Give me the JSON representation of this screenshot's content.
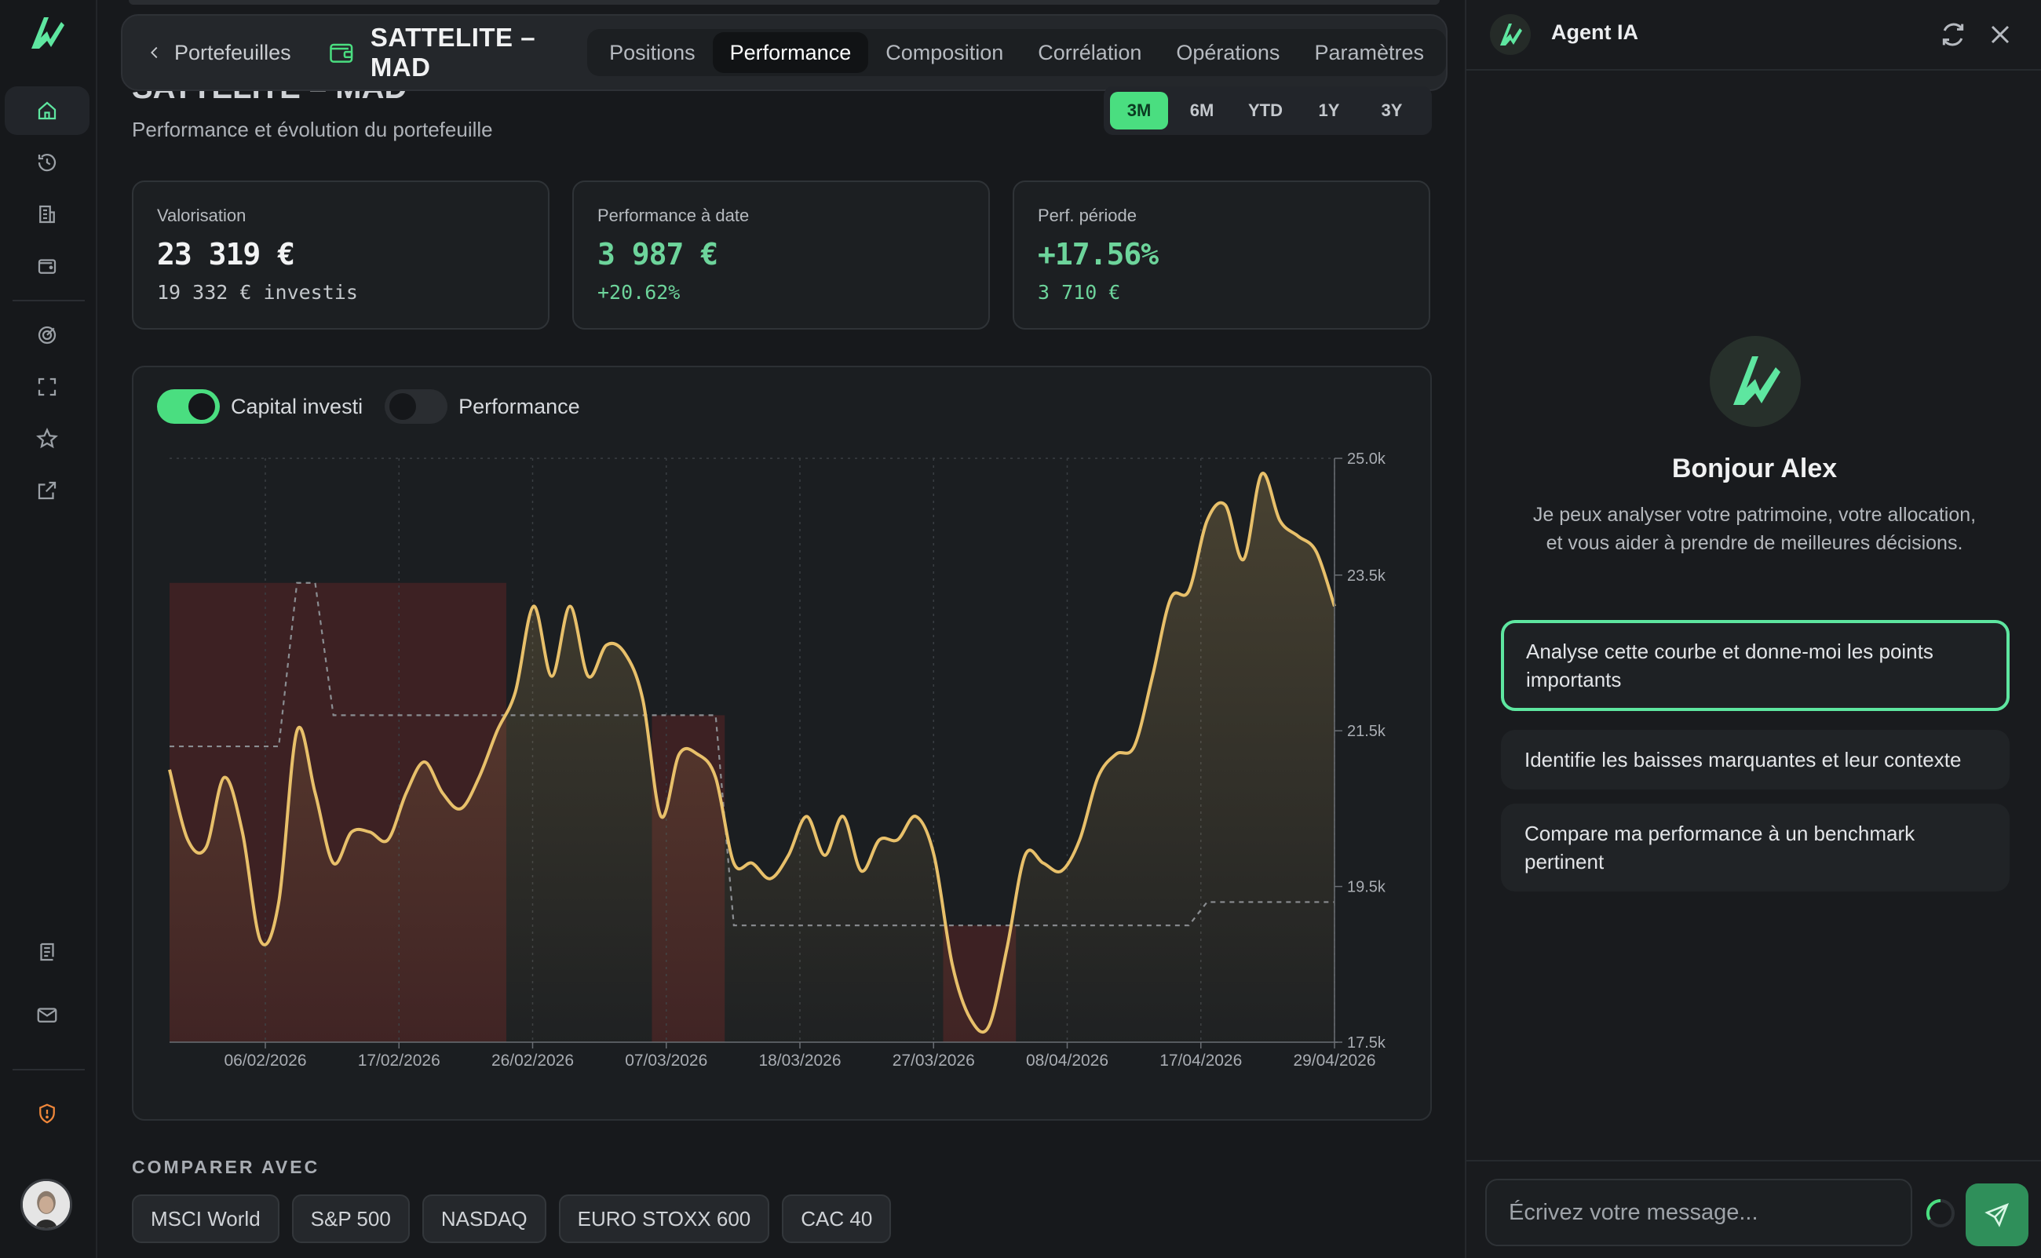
{
  "app": {
    "accent": "#4ade80",
    "brand_green": "#5ee6a0"
  },
  "sidebar": {
    "items": [
      {
        "icon": "home-icon",
        "active": true
      },
      {
        "icon": "history-icon"
      },
      {
        "icon": "building-icon"
      },
      {
        "icon": "wallet-icon"
      },
      {
        "icon": "target-icon"
      },
      {
        "icon": "scan-icon"
      },
      {
        "icon": "star-icon"
      },
      {
        "icon": "external-link-icon"
      },
      {
        "icon": "ledger-icon"
      },
      {
        "icon": "mail-icon"
      },
      {
        "icon": "shield-alert-icon"
      }
    ]
  },
  "header": {
    "back_label": "Portefeuilles",
    "portfolio_name": "SATTELITE – MAD",
    "tabs": [
      {
        "label": "Positions"
      },
      {
        "label": "Performance",
        "active": true
      },
      {
        "label": "Composition"
      },
      {
        "label": "Corrélation"
      },
      {
        "label": "Opérations"
      },
      {
        "label": "Paramètres"
      }
    ]
  },
  "page": {
    "title": "SATTELITE – MAD",
    "subtitle": "Performance et évolution du portefeuille",
    "periods": [
      "3M",
      "6M",
      "YTD",
      "1Y",
      "3Y"
    ],
    "active_period": "3M"
  },
  "cards": [
    {
      "label": "Valorisation",
      "value": "23 319 €",
      "sub": "19 332 € investis"
    },
    {
      "label": "Performance à date",
      "value": "3 987 €",
      "sub": "+20.62%"
    },
    {
      "label": "Perf. période",
      "value": "+17.56%",
      "sub": "3 710 €"
    }
  ],
  "toggles": [
    {
      "label": "Capital investi",
      "on": true
    },
    {
      "label": "Performance",
      "on": false
    }
  ],
  "chart_data": {
    "type": "line",
    "x_labels": [
      "06/02/2026",
      "17/02/2026",
      "26/02/2026",
      "07/03/2026",
      "18/03/2026",
      "27/03/2026",
      "08/04/2026",
      "17/04/2026",
      "29/04/2026"
    ],
    "y_ticks": [
      "25.0k",
      "23.5k",
      "21.5k",
      "19.5k",
      "17.5k"
    ],
    "ylim": [
      17500,
      25000
    ],
    "grid": true,
    "series": [
      {
        "color": "#e8c06a",
        "values": [
          21000,
          20100,
          20000,
          20900,
          20200,
          18800,
          19300,
          21500,
          20700,
          19800,
          20200,
          20200,
          20100,
          20700,
          21100,
          20700,
          20500,
          20900,
          21500,
          22000,
          23100,
          22200,
          23100,
          22200,
          22600,
          22500,
          21900,
          20400,
          21200,
          21200,
          20900,
          19800,
          19800,
          19600,
          19900,
          20400,
          19900,
          20400,
          19700,
          20100,
          20100,
          20400,
          19900,
          18500,
          17800,
          17700,
          18700,
          19900,
          19800,
          19700,
          20100,
          20900,
          21200,
          21300,
          22200,
          23200,
          23300,
          24200,
          24400,
          23700,
          24800,
          24200,
          24000,
          23800,
          23100
        ]
      },
      {
        "color": "#8a8d91",
        "dashed": true,
        "values": [
          21300,
          21300,
          21300,
          21300,
          21300,
          21300,
          21300,
          23400,
          23400,
          21700,
          21700,
          21700,
          21700,
          21700,
          21700,
          21700,
          21700,
          21700,
          21700,
          21700,
          21700,
          21700,
          21700,
          21700,
          21700,
          21700,
          21700,
          21700,
          21700,
          21700,
          21700,
          19000,
          19000,
          19000,
          19000,
          19000,
          19000,
          19000,
          19000,
          19000,
          19000,
          19000,
          19000,
          19000,
          19000,
          19000,
          19000,
          19000,
          19000,
          19000,
          19000,
          19000,
          19000,
          19000,
          19000,
          19000,
          19000,
          19300,
          19300,
          19300,
          19300,
          19300,
          19300,
          19300,
          19300
        ]
      }
    ]
  },
  "compare": {
    "title": "COMPARER AVEC",
    "chips": [
      "MSCI World",
      "S&P 500",
      "NASDAQ",
      "EURO STOXX 600",
      "CAC 40"
    ]
  },
  "agent": {
    "title": "Agent IA",
    "greeting": "Bonjour Alex",
    "intro": "Je peux analyser votre patrimoine, votre allocation, et vous aider à prendre de meilleures décisions.",
    "suggestions": [
      "Analyse cette courbe et donne-moi les points importants",
      "Identifie les baisses marquantes et leur contexte",
      "Compare ma performance à un benchmark pertinent"
    ],
    "input_placeholder": "Écrivez votre message..."
  }
}
